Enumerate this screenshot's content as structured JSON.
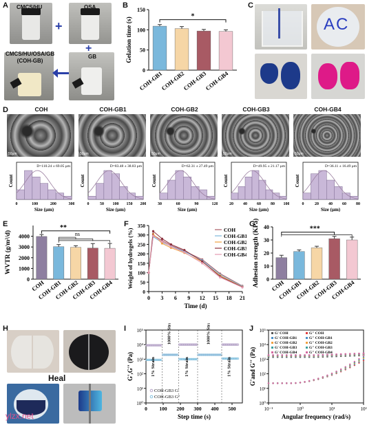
{
  "panelA": {
    "label": "A",
    "photos": [
      {
        "label": "CMCS/HU"
      },
      {
        "label": "OSA"
      },
      {
        "label": "CMCS/HU/OSA/GB\n(COH-GB)"
      },
      {
        "label": "GB"
      }
    ],
    "symbols": {
      "plus": "+"
    }
  },
  "panelB": {
    "label": "B",
    "chart_data": {
      "type": "bar",
      "categories": [
        "COH-GB1",
        "COH-GB2",
        "COH-GB3",
        "COH-GB4"
      ],
      "values": [
        109,
        103,
        97,
        96
      ],
      "errors": [
        4,
        5,
        4,
        4
      ],
      "ylabel": "Gelation time (s)",
      "ylim": [
        0,
        150
      ],
      "yticks": [
        0,
        50,
        100,
        150
      ],
      "colors": [
        "#7ab8dc",
        "#f6d6a6",
        "#a85a64",
        "#f3c8d2"
      ],
      "significance": "*"
    }
  },
  "panelC": {
    "label": "C",
    "photo_text": "AC"
  },
  "panelD": {
    "label": "D",
    "groups": [
      {
        "name": "COH",
        "annot": "D=110.24 ± 69.05 μm",
        "xticks": [
          "0",
          "100",
          "200",
          "300"
        ],
        "bars": [
          3,
          9,
          7,
          5,
          3,
          2,
          1
        ]
      },
      {
        "name": "COH-GB1",
        "annot": "D=83.48 ± 38.83 μm",
        "xticks": [
          "0",
          "50",
          "100",
          "150",
          "200"
        ],
        "bars": [
          1,
          5,
          9,
          8,
          4,
          2,
          1
        ]
      },
      {
        "name": "COH-GB2",
        "annot": "D=62.31 ± 27.49 μm",
        "xticks": [
          "30",
          "60",
          "90",
          "120"
        ],
        "bars": [
          2,
          6,
          9,
          7,
          4,
          3,
          1
        ]
      },
      {
        "name": "COH-GB3",
        "annot": "D=49.95 ± 21.17 μm",
        "xticks": [
          "20",
          "40",
          "60",
          "80",
          "100"
        ],
        "bars": [
          2,
          4,
          7,
          9,
          6,
          3,
          2,
          1
        ]
      },
      {
        "name": "COH-GB4",
        "annot": "D=36.11 ± 16.49 μm",
        "xticks": [
          "0",
          "20",
          "40",
          "60",
          "80"
        ],
        "bars": [
          2,
          8,
          9,
          6,
          4,
          2,
          1
        ]
      }
    ],
    "ylabel": "Count",
    "xlabel": "Size (μm)",
    "scale": "50μm"
  },
  "panelE": {
    "label": "E",
    "chart_data": {
      "type": "bar",
      "categories": [
        "COH",
        "COH-GB1",
        "COH-GB2",
        "COH-GB3",
        "COH-GB4"
      ],
      "values": [
        3980,
        3030,
        2970,
        2900,
        2880
      ],
      "errors": [
        180,
        200,
        150,
        420,
        450
      ],
      "ylabel": "WVTR (g/m²/d)",
      "ylim": [
        0,
        5000
      ],
      "yticks": [
        0,
        1000,
        2000,
        3000,
        4000
      ],
      "colors": [
        "#8e7fa0",
        "#7ab8dc",
        "#f6d6a6",
        "#a85a64",
        "#f3c8d2"
      ],
      "significance": [
        "**",
        "ns"
      ]
    }
  },
  "panelF": {
    "label": "F",
    "chart_data": {
      "type": "line",
      "x": [
        0,
        1,
        3,
        5,
        8,
        12,
        16,
        21
      ],
      "series": [
        {
          "name": "COH",
          "values": [
            100,
            300,
            270,
            245,
            215,
            170,
            95,
            30
          ],
          "color": "#a85a64"
        },
        {
          "name": "COH-GB1",
          "values": [
            100,
            290,
            260,
            240,
            212,
            165,
            90,
            28
          ],
          "color": "#7ab8dc"
        },
        {
          "name": "COH-GB2",
          "values": [
            100,
            305,
            255,
            232,
            205,
            158,
            85,
            25
          ],
          "color": "#f0a040"
        },
        {
          "name": "COH-GB3",
          "values": [
            100,
            320,
            280,
            250,
            220,
            160,
            80,
            24
          ],
          "color": "#8b2f3c"
        },
        {
          "name": "COH-GB4",
          "values": [
            100,
            295,
            265,
            238,
            208,
            150,
            75,
            22
          ],
          "color": "#e49ab0"
        }
      ],
      "xlabel": "Time (d)",
      "ylabel": "Weight of hydrogels (%)",
      "xticks": [
        0,
        3,
        6,
        9,
        12,
        15,
        18,
        21
      ],
      "yticks": [
        0,
        50,
        100,
        150,
        200,
        250,
        300,
        350
      ],
      "ylim": [
        0,
        350
      ],
      "xlim": [
        0,
        21
      ]
    }
  },
  "panelG": {
    "label": "G",
    "chart_data": {
      "type": "bar",
      "categories": [
        "COH",
        "COH-GB1",
        "COH-GB2",
        "COH-GB3",
        "COH-GB4"
      ],
      "values": [
        16.5,
        21.2,
        24,
        31,
        30
      ],
      "errors": [
        1.8,
        1.2,
        1.2,
        1.8,
        2.2
      ],
      "ylabel": "Adhesion strength (KPa)",
      "ylim": [
        0,
        40
      ],
      "yticks": [
        0,
        10,
        20,
        30,
        40
      ],
      "colors": [
        "#8e7fa0",
        "#7ab8dc",
        "#f6d6a6",
        "#a85a64",
        "#f3c8d2"
      ],
      "significance": "***"
    }
  },
  "panelH": {
    "label": "H",
    "heal_text": "Heal",
    "watermark": "ylzx.net"
  },
  "panelI": {
    "label": "I",
    "chart_data": {
      "type": "scatter",
      "xlabel": "Step time (s)",
      "ylabel": "G',G'' (Pa)",
      "xticks": [
        0,
        100,
        200,
        300,
        400,
        500
      ],
      "ytick_labels": [
        "10⁰",
        "10¹",
        "10²",
        "10³",
        "10⁴",
        "10⁵"
      ],
      "segments": [
        {
          "x0": 0,
          "x1": 95,
          "Gp": 9000,
          "Gpp": 900
        },
        {
          "x0": 95,
          "x1": 190,
          "Gp": 2000,
          "Gpp": 2000
        },
        {
          "x0": 190,
          "x1": 300,
          "Gp": 10000,
          "Gpp": 1000
        },
        {
          "x0": 300,
          "x1": 440,
          "Gp": 2000,
          "Gpp": 2000
        },
        {
          "x0": 440,
          "x1": 540,
          "Gp": 10000,
          "Gpp": 1100
        }
      ],
      "strain_labels": [
        "1% Strain",
        "1000% Strain",
        "1% Strain",
        "1000% Strain",
        "1% Strain"
      ],
      "legend": [
        "COH-GB3 G'",
        "COH-GB3 G''"
      ],
      "colors": {
        "gp": "#b7a6c9",
        "gpp": "#87c3e0"
      }
    }
  },
  "panelJ": {
    "label": "J",
    "chart_data": {
      "type": "scatter",
      "xlabel": "Angular frequency (rad/s)",
      "ylabel": "G'and G'' (Pa)",
      "xtick_labels": [
        "10⁻¹",
        "10⁰",
        "10¹",
        "10²"
      ],
      "ytick_labels": [
        "10⁰",
        "10¹",
        "10²",
        "10³",
        "10⁴",
        "10⁵"
      ],
      "legend": [
        {
          "text": "G' COH",
          "color": "#555555",
          "shape": "square"
        },
        {
          "text": "G' COH-GB1",
          "color": "#4a90c8",
          "shape": "circle"
        },
        {
          "text": "G' COH-GB2",
          "color": "#f0a040",
          "shape": "triangle"
        },
        {
          "text": "G' COH-GB3",
          "color": "#3aa0a0",
          "shape": "triangle-down"
        },
        {
          "text": "G' COH-GB4",
          "color": "#d46aa0",
          "shape": "diamond"
        },
        {
          "text": "G'' COH",
          "color": "#e04040",
          "shape": "square"
        },
        {
          "text": "G'' COH-GB1",
          "color": "#4a90c8",
          "shape": "circle"
        },
        {
          "text": "G'' COH-GB2",
          "color": "#f0a040",
          "shape": "triangle"
        },
        {
          "text": "G'' COH-GB3",
          "color": "#3aa0a0",
          "shape": "triangle-down"
        },
        {
          "text": "G'' COH-GB4",
          "color": "#d46aa0",
          "shape": "diamond"
        }
      ]
    }
  }
}
